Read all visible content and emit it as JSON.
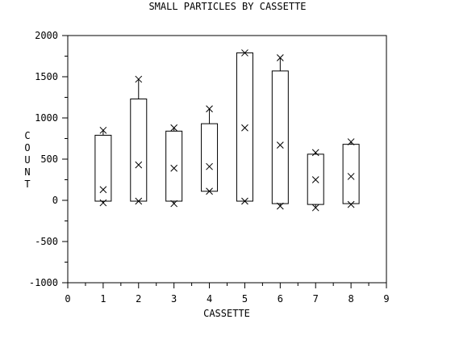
{
  "chart_data": {
    "type": "box",
    "title": "SMALL PARTICLES BY CASSETTE",
    "xlabel": "CASSETTE",
    "ylabel": "COUNT",
    "xlim": [
      0,
      9
    ],
    "ylim": [
      -1000,
      2000
    ],
    "x_ticks": [
      0,
      1,
      2,
      3,
      4,
      5,
      6,
      7,
      8,
      9
    ],
    "y_ticks": [
      -1000,
      -500,
      0,
      500,
      1000,
      1500,
      2000
    ],
    "grid": false,
    "boxes": [
      {
        "x": 1,
        "q1": -10,
        "q3": 790,
        "min": -30,
        "max": 850,
        "mid": 130
      },
      {
        "x": 2,
        "q1": -10,
        "q3": 1230,
        "min": -10,
        "max": 1470,
        "mid": 430
      },
      {
        "x": 3,
        "q1": -10,
        "q3": 840,
        "min": -40,
        "max": 880,
        "mid": 390
      },
      {
        "x": 4,
        "q1": 110,
        "q3": 930,
        "min": 110,
        "max": 1110,
        "mid": 410
      },
      {
        "x": 5,
        "q1": -10,
        "q3": 1790,
        "min": -10,
        "max": 1790,
        "mid": 880
      },
      {
        "x": 6,
        "q1": -40,
        "q3": 1570,
        "min": -70,
        "max": 1730,
        "mid": 670
      },
      {
        "x": 7,
        "q1": -50,
        "q3": 560,
        "min": -90,
        "max": 580,
        "mid": 250
      },
      {
        "x": 8,
        "q1": -40,
        "q3": 680,
        "min": -50,
        "max": 710,
        "mid": 290
      }
    ]
  }
}
